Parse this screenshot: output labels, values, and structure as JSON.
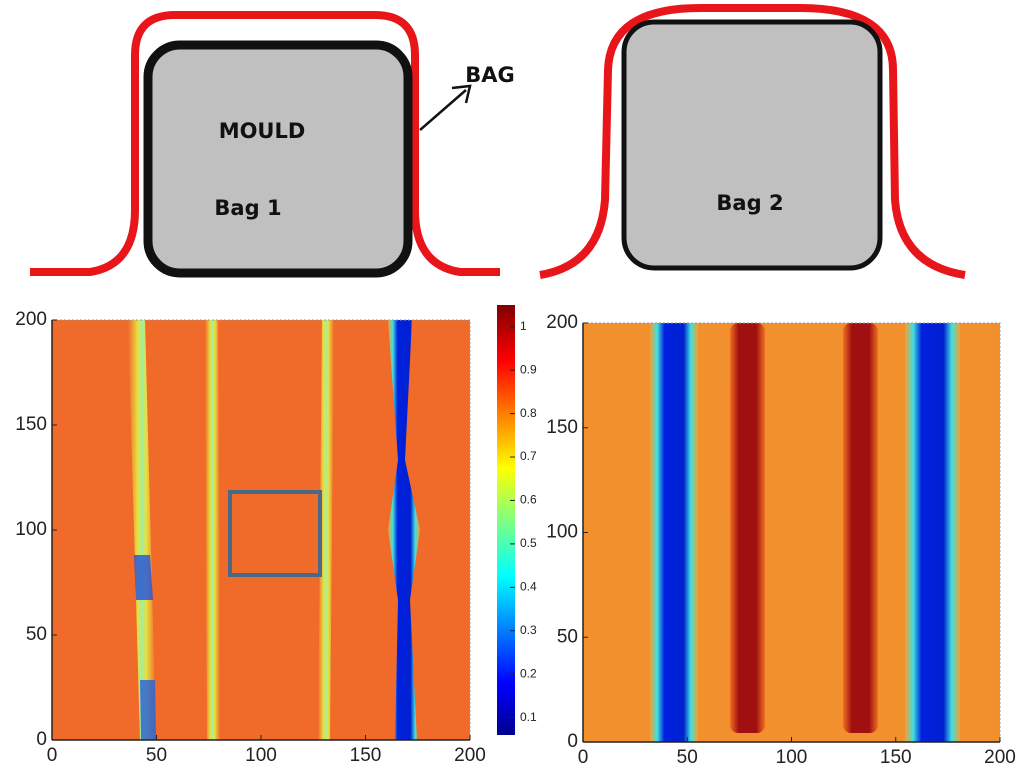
{
  "diagrams": [
    {
      "mould_label": "MOULD",
      "bag_label": "Bag 1",
      "arrow_label": "BAG"
    },
    {
      "bag_label": "Bag 2"
    }
  ],
  "plots": [
    {
      "xlim": [
        0,
        200
      ],
      "ylim": [
        0,
        200
      ],
      "xticks": [
        0,
        50,
        100,
        150,
        200
      ],
      "yticks": [
        0,
        50,
        100,
        150,
        200
      ]
    },
    {
      "xlim": [
        0,
        200
      ],
      "ylim": [
        0,
        200
      ],
      "xticks": [
        0,
        50,
        100,
        150,
        200
      ],
      "yticks": [
        0,
        50,
        100,
        150,
        200
      ]
    }
  ],
  "colorbar": {
    "lim": [
      0.06,
      1.05
    ],
    "ticks": [
      0.1,
      0.2,
      0.3,
      0.4,
      0.5,
      0.6,
      0.7,
      0.8,
      0.9,
      1
    ]
  }
}
